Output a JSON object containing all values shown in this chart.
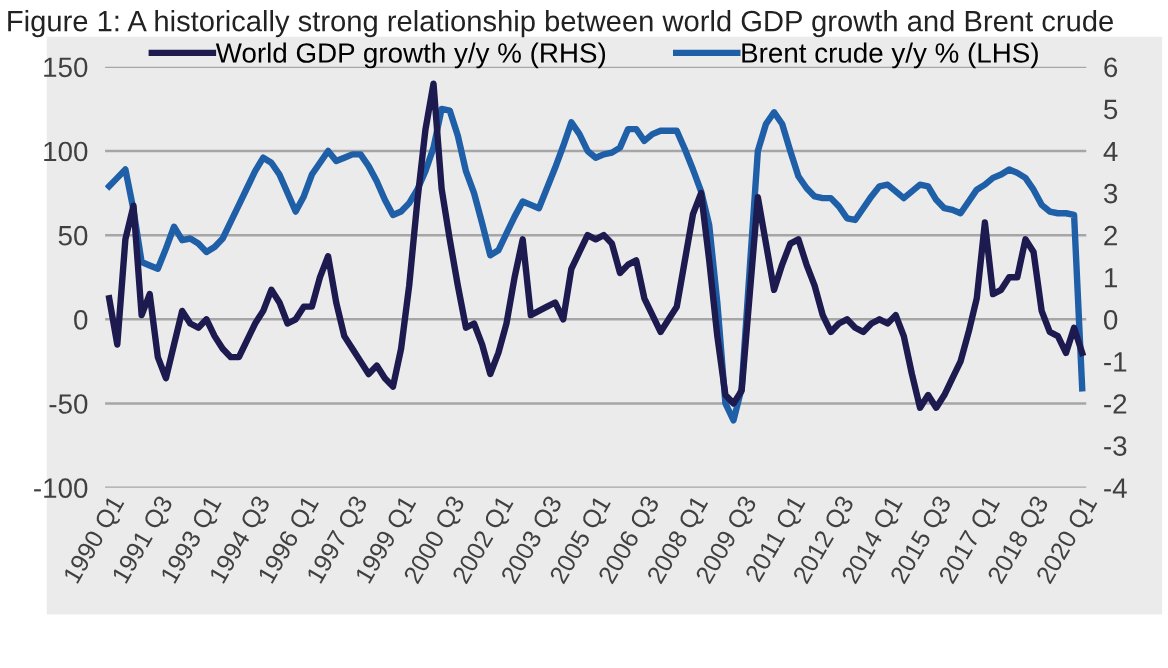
{
  "chart_data": {
    "type": "line",
    "title": "Figure 1: A historically strong relationship between world GDP growth and Brent crude",
    "categories": [
      "1990 Q1",
      null,
      null,
      null,
      null,
      null,
      "1991 Q3",
      null,
      null,
      null,
      null,
      null,
      "1993 Q1",
      null,
      null,
      null,
      null,
      null,
      "1994 Q3",
      null,
      null,
      null,
      null,
      null,
      "1996 Q1",
      null,
      null,
      null,
      null,
      null,
      "1997 Q3",
      null,
      null,
      null,
      null,
      null,
      "1999 Q1",
      null,
      null,
      null,
      null,
      null,
      "2000 Q3",
      null,
      null,
      null,
      null,
      null,
      "2002 Q1",
      null,
      null,
      null,
      null,
      null,
      "2003 Q3",
      null,
      null,
      null,
      null,
      null,
      "2005 Q1",
      null,
      null,
      null,
      null,
      null,
      "2006 Q3",
      null,
      null,
      null,
      null,
      null,
      "2008 Q1",
      null,
      null,
      null,
      null,
      null,
      "2009 Q3",
      null,
      null,
      null,
      null,
      null,
      "2011 Q1",
      null,
      null,
      null,
      null,
      null,
      "2012 Q3",
      null,
      null,
      null,
      null,
      null,
      "2014 Q1",
      null,
      null,
      null,
      null,
      null,
      "2015 Q3",
      null,
      null,
      null,
      null,
      null,
      "2017 Q1",
      null,
      null,
      null,
      null,
      null,
      "2018 Q3",
      null,
      null,
      null,
      null,
      null,
      "2020 Q1"
    ],
    "ylim": [
      -100,
      150
    ],
    "yticks": [
      -100,
      -50,
      0,
      50,
      100,
      150
    ],
    "y2lim": [
      -4,
      6
    ],
    "y2ticks": [
      -4,
      -3,
      -2,
      -1,
      0,
      1,
      2,
      3,
      4,
      5,
      6
    ],
    "grid": "y",
    "legend": "top",
    "marker": "none",
    "line_style": "solid",
    "series": [
      {
        "name": "World GDP growth y/y % (RHS)",
        "color": "#1c1a4e",
        "axis": "y2",
        "values": [
          0.5,
          -0.6,
          1.9,
          2.7,
          0.1,
          0.6,
          -0.9,
          -1.4,
          -0.6,
          0.2,
          -0.1,
          -0.2,
          0.0,
          -0.4,
          -0.7,
          -0.9,
          -0.9,
          -0.5,
          -0.1,
          0.2,
          0.7,
          0.4,
          -0.1,
          0.0,
          0.3,
          0.3,
          1.0,
          1.5,
          0.4,
          -0.4,
          -0.7,
          -1.0,
          -1.3,
          -1.1,
          -1.4,
          -1.6,
          -0.7,
          0.8,
          2.8,
          4.5,
          5.6,
          3.1,
          1.9,
          0.8,
          -0.2,
          -0.1,
          -0.6,
          -1.3,
          -0.8,
          -0.1,
          1.0,
          1.9,
          0.1,
          0.2,
          0.3,
          0.4,
          0.0,
          1.2,
          1.6,
          2.0,
          1.9,
          2.0,
          1.8,
          1.1,
          1.3,
          1.4,
          0.5,
          0.1,
          -0.3,
          0.0,
          0.3,
          1.4,
          2.5,
          3.0,
          1.4,
          -0.4,
          -1.8,
          -2.0,
          -1.7,
          0.6,
          2.9,
          1.8,
          0.7,
          1.3,
          1.8,
          1.9,
          1.3,
          0.8,
          0.1,
          -0.3,
          -0.1,
          0.0,
          -0.2,
          -0.3,
          -0.1,
          0.0,
          -0.1,
          0.1,
          -0.4,
          -1.3,
          -2.1,
          -1.8,
          -2.1,
          -1.8,
          -1.4,
          -1.0,
          -0.3,
          0.5,
          2.3,
          0.6,
          0.7,
          1.0,
          1.0,
          1.9,
          1.6,
          0.2,
          -0.3,
          -0.4,
          -0.8,
          -0.2,
          -0.8
        ]
      },
      {
        "name": "Brent crude y/y % (LHS)",
        "color": "#1f5fa8",
        "axis": "y",
        "values": [
          79,
          84,
          89,
          65,
          34,
          32,
          30,
          42,
          55,
          47,
          48,
          45,
          40,
          43,
          48,
          58,
          68,
          78,
          88,
          96,
          93,
          86,
          75,
          64,
          73,
          86,
          93,
          100,
          94,
          96,
          98,
          98,
          91,
          82,
          71,
          62,
          64,
          69,
          77,
          88,
          102,
          125,
          124,
          109,
          88,
          75,
          57,
          38,
          41,
          51,
          61,
          70,
          68,
          66,
          78,
          90,
          103,
          117,
          110,
          100,
          96,
          98,
          99,
          102,
          113,
          113,
          106,
          110,
          112,
          112,
          112,
          101,
          89,
          76,
          56,
          10,
          -50,
          -60,
          -41,
          30,
          100,
          116,
          123,
          116,
          100,
          85,
          78,
          73,
          72,
          72,
          67,
          60,
          59,
          66,
          73,
          79,
          80,
          76,
          72,
          76,
          80,
          79,
          71,
          66,
          65,
          63,
          70,
          77,
          80,
          84,
          86,
          89,
          87,
          84,
          77,
          68,
          64,
          63,
          63,
          62,
          -41
        ]
      }
    ]
  }
}
